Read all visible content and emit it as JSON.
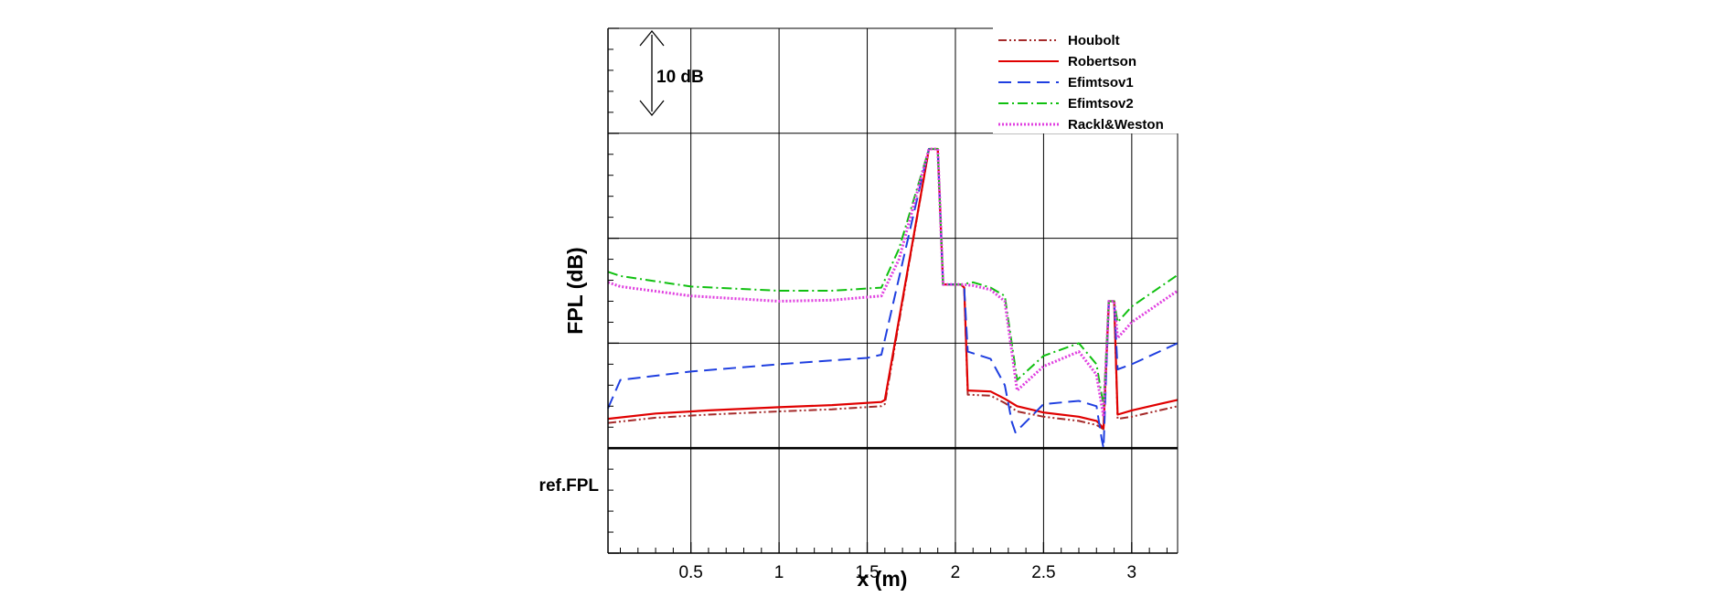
{
  "chart_data": {
    "type": "line",
    "xlabel": "x (m)",
    "ylabel": "FPL (dB)",
    "xlim": [
      0.03,
      3.26
    ],
    "ylim": [
      -10,
      40
    ],
    "x_ticks": [
      0.5,
      1,
      1.5,
      2,
      2.5,
      3
    ],
    "x_tick_labels": [
      "0.5",
      "1",
      "1.5",
      "2",
      "2.5",
      "3"
    ],
    "grid": true,
    "legend_position": "top-right",
    "annotations": {
      "scale_bar_label": "10 dB",
      "reference_label": "ref.FPL"
    },
    "series": [
      {
        "name": "Houbolt",
        "color": "#a52a2a",
        "dash": "dash-dot-dot",
        "points": [
          [
            0.03,
            2.4
          ],
          [
            0.3,
            2.9
          ],
          [
            0.6,
            3.2
          ],
          [
            1.0,
            3.5
          ],
          [
            1.3,
            3.7
          ],
          [
            1.58,
            4.0
          ],
          [
            1.6,
            4.2
          ],
          [
            1.85,
            28.5
          ],
          [
            1.9,
            28.5
          ],
          [
            1.93,
            15.6
          ],
          [
            2.03,
            15.6
          ],
          [
            2.05,
            15.3
          ],
          [
            2.07,
            5.1
          ],
          [
            2.2,
            5.0
          ],
          [
            2.28,
            4.3
          ],
          [
            2.35,
            3.5
          ],
          [
            2.5,
            3.0
          ],
          [
            2.7,
            2.6
          ],
          [
            2.8,
            2.2
          ],
          [
            2.84,
            1.8
          ],
          [
            2.87,
            14.0
          ],
          [
            2.9,
            14.0
          ],
          [
            2.92,
            2.8
          ],
          [
            3.0,
            3.0
          ],
          [
            3.26,
            4.0
          ]
        ]
      },
      {
        "name": "Robertson",
        "color": "#e00000",
        "dash": "solid",
        "points": [
          [
            0.03,
            2.8
          ],
          [
            0.3,
            3.3
          ],
          [
            0.6,
            3.6
          ],
          [
            1.0,
            3.9
          ],
          [
            1.3,
            4.1
          ],
          [
            1.58,
            4.4
          ],
          [
            1.6,
            4.6
          ],
          [
            1.85,
            28.5
          ],
          [
            1.9,
            28.5
          ],
          [
            1.93,
            15.6
          ],
          [
            2.03,
            15.6
          ],
          [
            2.05,
            15.3
          ],
          [
            2.07,
            5.5
          ],
          [
            2.2,
            5.4
          ],
          [
            2.28,
            4.7
          ],
          [
            2.35,
            4.0
          ],
          [
            2.5,
            3.4
          ],
          [
            2.7,
            3.0
          ],
          [
            2.8,
            2.6
          ],
          [
            2.84,
            1.9
          ],
          [
            2.87,
            14.0
          ],
          [
            2.9,
            14.0
          ],
          [
            2.92,
            3.2
          ],
          [
            3.0,
            3.6
          ],
          [
            3.26,
            4.6
          ]
        ]
      },
      {
        "name": "Efimtsov1",
        "color": "#1f3fe0",
        "dash": "dashed",
        "points": [
          [
            0.03,
            3.8
          ],
          [
            0.1,
            6.5
          ],
          [
            0.5,
            7.3
          ],
          [
            1.0,
            8.0
          ],
          [
            1.5,
            8.6
          ],
          [
            1.58,
            8.9
          ],
          [
            1.8,
            25.0
          ],
          [
            1.85,
            28.5
          ],
          [
            1.9,
            28.5
          ],
          [
            1.93,
            15.6
          ],
          [
            2.03,
            15.6
          ],
          [
            2.05,
            15.3
          ],
          [
            2.07,
            9.2
          ],
          [
            2.2,
            8.5
          ],
          [
            2.28,
            6.0
          ],
          [
            2.32,
            2.5
          ],
          [
            2.34,
            1.5
          ],
          [
            2.5,
            4.2
          ],
          [
            2.7,
            4.5
          ],
          [
            2.8,
            4.0
          ],
          [
            2.83,
            0.8
          ],
          [
            2.84,
            0.0
          ],
          [
            2.87,
            14.0
          ],
          [
            2.9,
            14.0
          ],
          [
            2.92,
            7.5
          ],
          [
            3.0,
            8.0
          ],
          [
            3.26,
            10.0
          ]
        ]
      },
      {
        "name": "Efimtsov2",
        "color": "#10c010",
        "dash": "dash-dot",
        "points": [
          [
            0.03,
            16.8
          ],
          [
            0.1,
            16.4
          ],
          [
            0.5,
            15.4
          ],
          [
            1.0,
            15.0
          ],
          [
            1.3,
            15.0
          ],
          [
            1.58,
            15.3
          ],
          [
            1.68,
            19.0
          ],
          [
            1.85,
            28.5
          ],
          [
            1.9,
            28.5
          ],
          [
            1.93,
            15.6
          ],
          [
            2.03,
            15.6
          ],
          [
            2.1,
            15.8
          ],
          [
            2.2,
            15.3
          ],
          [
            2.28,
            14.5
          ],
          [
            2.35,
            6.5
          ],
          [
            2.5,
            8.8
          ],
          [
            2.7,
            10.0
          ],
          [
            2.8,
            8.0
          ],
          [
            2.84,
            4.0
          ],
          [
            2.87,
            14.0
          ],
          [
            2.9,
            14.0
          ],
          [
            2.92,
            12.0
          ],
          [
            3.0,
            13.5
          ],
          [
            3.26,
            16.5
          ]
        ]
      },
      {
        "name": "Rackl&Weston",
        "color": "#e040e0",
        "dash": "dotted",
        "points": [
          [
            0.03,
            15.8
          ],
          [
            0.1,
            15.4
          ],
          [
            0.5,
            14.5
          ],
          [
            1.0,
            14.0
          ],
          [
            1.3,
            14.1
          ],
          [
            1.58,
            14.5
          ],
          [
            1.68,
            18.0
          ],
          [
            1.85,
            28.5
          ],
          [
            1.9,
            28.5
          ],
          [
            1.93,
            15.6
          ],
          [
            2.03,
            15.6
          ],
          [
            2.1,
            15.5
          ],
          [
            2.2,
            15.1
          ],
          [
            2.28,
            14.0
          ],
          [
            2.35,
            5.5
          ],
          [
            2.5,
            7.8
          ],
          [
            2.7,
            9.2
          ],
          [
            2.8,
            7.0
          ],
          [
            2.84,
            3.0
          ],
          [
            2.87,
            14.0
          ],
          [
            2.9,
            14.0
          ],
          [
            2.92,
            10.5
          ],
          [
            3.0,
            12.0
          ],
          [
            3.26,
            15.0
          ]
        ]
      }
    ]
  }
}
